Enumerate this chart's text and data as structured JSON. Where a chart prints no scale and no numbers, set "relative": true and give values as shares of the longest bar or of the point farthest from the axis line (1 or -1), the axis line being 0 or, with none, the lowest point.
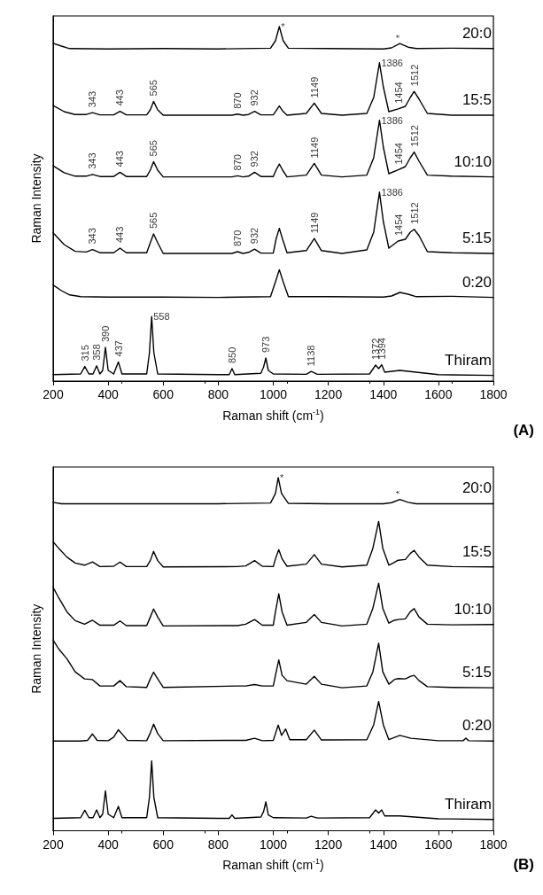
{
  "chart_data": [
    {
      "type": "line",
      "relative": true,
      "marker": "none",
      "xlabel": "Raman shift (cm$^{-1}$)",
      "ylabel": "Raman Intensity",
      "xlim": [
        200,
        1800
      ],
      "xticks": [
        200,
        400,
        600,
        800,
        1000,
        1200,
        1400,
        1600,
        1800
      ],
      "series": [
        {
          "name": "20:0",
          "color": "#000000",
          "x": [
            200,
            230,
            260,
            400,
            600,
            800,
            990,
            1008,
            1022,
            1036,
            1055,
            1200,
            1400,
            1430,
            1460,
            1490,
            1520,
            1650,
            1800
          ],
          "values": [
            0.953,
            0.945,
            0.938,
            0.937,
            0.938,
            0.937,
            0.939,
            0.96,
            1.0,
            0.96,
            0.939,
            0.938,
            0.937,
            0.94,
            0.952,
            0.942,
            0.938,
            0.939,
            0.938
          ]
        },
        {
          "name": "15:5",
          "color": "#000000",
          "x": [
            200,
            240,
            280,
            320,
            343,
            370,
            420,
            443,
            466,
            540,
            553,
            565,
            580,
            600,
            850,
            870,
            890,
            910,
            932,
            955,
            1000,
            1010,
            1022,
            1034,
            1050,
            1120,
            1149,
            1175,
            1250,
            1340,
            1365,
            1386,
            1400,
            1420,
            1454,
            1480,
            1498,
            1512,
            1530,
            1560,
            1650,
            1800
          ],
          "values": [
            0.777,
            0.76,
            0.752,
            0.752,
            0.757,
            0.751,
            0.751,
            0.761,
            0.751,
            0.751,
            0.765,
            0.789,
            0.765,
            0.75,
            0.75,
            0.753,
            0.75,
            0.752,
            0.761,
            0.751,
            0.751,
            0.762,
            0.776,
            0.762,
            0.75,
            0.755,
            0.784,
            0.755,
            0.75,
            0.755,
            0.8,
            0.898,
            0.83,
            0.76,
            0.768,
            0.775,
            0.8,
            0.817,
            0.795,
            0.755,
            0.75,
            0.75
          ]
        },
        {
          "name": "10:10",
          "color": "#000000",
          "x": [
            200,
            240,
            280,
            320,
            343,
            370,
            420,
            443,
            466,
            540,
            553,
            565,
            580,
            600,
            850,
            870,
            890,
            910,
            932,
            955,
            1000,
            1010,
            1022,
            1034,
            1050,
            1120,
            1149,
            1175,
            1250,
            1340,
            1365,
            1386,
            1400,
            1420,
            1454,
            1480,
            1498,
            1512,
            1530,
            1560,
            1650,
            1800
          ],
          "values": [
            0.607,
            0.588,
            0.578,
            0.578,
            0.583,
            0.577,
            0.577,
            0.589,
            0.577,
            0.577,
            0.595,
            0.619,
            0.595,
            0.576,
            0.576,
            0.579,
            0.576,
            0.578,
            0.589,
            0.577,
            0.577,
            0.595,
            0.612,
            0.595,
            0.576,
            0.581,
            0.614,
            0.581,
            0.576,
            0.581,
            0.63,
            0.736,
            0.66,
            0.585,
            0.596,
            0.605,
            0.63,
            0.646,
            0.62,
            0.581,
            0.578,
            0.576
          ]
        },
        {
          "name": "5:15",
          "color": "#000000",
          "x": [
            200,
            240,
            280,
            320,
            343,
            370,
            420,
            443,
            466,
            540,
            553,
            565,
            580,
            600,
            850,
            870,
            890,
            910,
            932,
            955,
            1000,
            1010,
            1022,
            1034,
            1050,
            1120,
            1149,
            1175,
            1250,
            1340,
            1365,
            1386,
            1400,
            1420,
            1454,
            1480,
            1498,
            1512,
            1530,
            1560,
            1650,
            1800
          ],
          "values": [
            0.418,
            0.385,
            0.366,
            0.364,
            0.371,
            0.362,
            0.362,
            0.375,
            0.362,
            0.362,
            0.39,
            0.415,
            0.39,
            0.36,
            0.36,
            0.365,
            0.36,
            0.363,
            0.372,
            0.361,
            0.361,
            0.4,
            0.431,
            0.4,
            0.362,
            0.368,
            0.402,
            0.368,
            0.36,
            0.37,
            0.42,
            0.533,
            0.45,
            0.375,
            0.395,
            0.4,
            0.42,
            0.428,
            0.41,
            0.365,
            0.362,
            0.36
          ]
        },
        {
          "name": "0:20",
          "color": "#000000",
          "x": [
            200,
            230,
            260,
            300,
            400,
            600,
            800,
            990,
            1008,
            1022,
            1036,
            1055,
            1200,
            1400,
            1430,
            1460,
            1490,
            1520,
            1650,
            1800
          ],
          "values": [
            0.271,
            0.255,
            0.243,
            0.238,
            0.237,
            0.237,
            0.236,
            0.238,
            0.28,
            0.314,
            0.28,
            0.238,
            0.238,
            0.237,
            0.24,
            0.25,
            0.245,
            0.238,
            0.239,
            0.236
          ]
        },
        {
          "name": "Thiram",
          "color": "#000000",
          "x": [
            200,
            300,
            315,
            330,
            345,
            358,
            370,
            380,
            390,
            400,
            420,
            437,
            450,
            540,
            550,
            558,
            566,
            580,
            800,
            840,
            850,
            860,
            955,
            965,
            973,
            982,
            1000,
            1120,
            1138,
            1160,
            1350,
            1372,
            1383,
            1394,
            1405,
            1460,
            1600,
            1800
          ],
          "values": [
            0.018,
            0.02,
            0.041,
            0.02,
            0.02,
            0.043,
            0.02,
            0.03,
            0.095,
            0.03,
            0.02,
            0.054,
            0.02,
            0.02,
            0.08,
            0.182,
            0.08,
            0.02,
            0.018,
            0.018,
            0.035,
            0.018,
            0.022,
            0.04,
            0.065,
            0.03,
            0.02,
            0.019,
            0.027,
            0.019,
            0.02,
            0.045,
            0.035,
            0.046,
            0.025,
            0.03,
            0.018,
            0.016
          ]
        }
      ],
      "annotations": [
        {
          "text": "*",
          "x": 1022,
          "y": 1.0
        },
        {
          "text": "*",
          "x": 1460,
          "y": 0.952
        },
        {
          "text": "343",
          "x": 343,
          "y": 0.757
        },
        {
          "text": "443",
          "x": 443,
          "y": 0.761
        },
        {
          "text": "565",
          "x": 565,
          "y": 0.789
        },
        {
          "text": "870",
          "x": 870,
          "y": 0.753
        },
        {
          "text": "932",
          "x": 932,
          "y": 0.761
        },
        {
          "text": "1149",
          "x": 1149,
          "y": 0.784
        },
        {
          "text": "1386",
          "x": 1386,
          "y": 0.898
        },
        {
          "text": "1454",
          "x": 1454,
          "y": 0.768
        },
        {
          "text": "1512",
          "x": 1512,
          "y": 0.817
        },
        {
          "text": "343",
          "x": 343,
          "y": 0.583
        },
        {
          "text": "443",
          "x": 443,
          "y": 0.589
        },
        {
          "text": "565",
          "x": 565,
          "y": 0.619
        },
        {
          "text": "870",
          "x": 870,
          "y": 0.579
        },
        {
          "text": "932",
          "x": 932,
          "y": 0.589
        },
        {
          "text": "1149",
          "x": 1149,
          "y": 0.614
        },
        {
          "text": "1386",
          "x": 1386,
          "y": 0.736
        },
        {
          "text": "1454",
          "x": 1454,
          "y": 0.596
        },
        {
          "text": "1512",
          "x": 1512,
          "y": 0.646
        },
        {
          "text": "343",
          "x": 343,
          "y": 0.371
        },
        {
          "text": "443",
          "x": 443,
          "y": 0.375
        },
        {
          "text": "565",
          "x": 565,
          "y": 0.415
        },
        {
          "text": "870",
          "x": 870,
          "y": 0.365
        },
        {
          "text": "932",
          "x": 932,
          "y": 0.372
        },
        {
          "text": "1149",
          "x": 1149,
          "y": 0.402
        },
        {
          "text": "1386",
          "x": 1386,
          "y": 0.533
        },
        {
          "text": "1454",
          "x": 1454,
          "y": 0.395
        },
        {
          "text": "1512",
          "x": 1512,
          "y": 0.428
        },
        {
          "text": "315",
          "x": 315,
          "y": 0.041
        },
        {
          "text": "358",
          "x": 358,
          "y": 0.043
        },
        {
          "text": "390",
          "x": 390,
          "y": 0.095
        },
        {
          "text": "437",
          "x": 437,
          "y": 0.054
        },
        {
          "text": "558",
          "x": 558,
          "y": 0.182
        },
        {
          "text": "850",
          "x": 850,
          "y": 0.035
        },
        {
          "text": "973",
          "x": 973,
          "y": 0.065
        },
        {
          "text": "1138",
          "x": 1138,
          "y": 0.027
        },
        {
          "text": "1372",
          "x": 1372,
          "y": 0.045
        },
        {
          "text": "1394",
          "x": 1394,
          "y": 0.046
        },
        "(A)"
      ]
    },
    {
      "type": "line",
      "relative": true,
      "marker": "none",
      "xlabel": "Raman shift (cm$^{-1}$)",
      "ylabel": "Raman Intensity",
      "xlim": [
        200,
        1800
      ],
      "xticks": [
        200,
        400,
        600,
        800,
        1000,
        1200,
        1400,
        1600,
        1800
      ],
      "series": [
        {
          "name": "20:0",
          "color": "#000000",
          "x": [
            200,
            230,
            260,
            400,
            600,
            800,
            990,
            1008,
            1018,
            1030,
            1055,
            1200,
            1400,
            1430,
            1460,
            1490,
            1520,
            1650,
            1800
          ],
          "values": [
            0.93,
            0.926,
            0.926,
            0.926,
            0.926,
            0.926,
            0.928,
            0.955,
            1.0,
            0.955,
            0.927,
            0.926,
            0.926,
            0.929,
            0.938,
            0.93,
            0.926,
            0.926,
            0.926
          ]
        },
        {
          "name": "15:5",
          "color": "#000000",
          "x": [
            200,
            220,
            250,
            280,
            314,
            343,
            370,
            420,
            443,
            466,
            540,
            553,
            565,
            580,
            600,
            870,
            900,
            932,
            960,
            1000,
            1008,
            1020,
            1032,
            1050,
            1120,
            1149,
            1175,
            1250,
            1340,
            1362,
            1383,
            1398,
            1420,
            1440,
            1454,
            1480,
            1498,
            1512,
            1530,
            1560,
            1650,
            1800
          ],
          "values": [
            0.818,
            0.8,
            0.775,
            0.758,
            0.752,
            0.761,
            0.748,
            0.749,
            0.761,
            0.748,
            0.748,
            0.765,
            0.791,
            0.765,
            0.747,
            0.748,
            0.75,
            0.765,
            0.749,
            0.748,
            0.77,
            0.796,
            0.77,
            0.749,
            0.755,
            0.782,
            0.755,
            0.747,
            0.752,
            0.8,
            0.876,
            0.8,
            0.752,
            0.76,
            0.766,
            0.768,
            0.785,
            0.794,
            0.775,
            0.752,
            0.748,
            0.747
          ]
        },
        {
          "name": "10:10",
          "color": "#000000",
          "x": [
            200,
            220,
            250,
            280,
            314,
            343,
            370,
            420,
            443,
            466,
            540,
            553,
            565,
            580,
            600,
            870,
            900,
            932,
            960,
            1000,
            1008,
            1020,
            1032,
            1050,
            1120,
            1149,
            1175,
            1250,
            1340,
            1362,
            1383,
            1398,
            1420,
            1440,
            1454,
            1480,
            1498,
            1512,
            1530,
            1560,
            1650,
            1800
          ],
          "values": [
            0.689,
            0.66,
            0.62,
            0.595,
            0.585,
            0.596,
            0.582,
            0.582,
            0.594,
            0.581,
            0.581,
            0.605,
            0.628,
            0.605,
            0.58,
            0.581,
            0.585,
            0.598,
            0.582,
            0.582,
            0.62,
            0.671,
            0.62,
            0.582,
            0.59,
            0.612,
            0.59,
            0.58,
            0.585,
            0.63,
            0.701,
            0.63,
            0.588,
            0.596,
            0.598,
            0.6,
            0.62,
            0.629,
            0.605,
            0.585,
            0.583,
            0.584
          ]
        },
        {
          "name": "5:15",
          "color": "#000000",
          "x": [
            200,
            220,
            250,
            280,
            314,
            343,
            370,
            420,
            443,
            466,
            540,
            553,
            565,
            580,
            600,
            870,
            900,
            932,
            960,
            1000,
            1008,
            1020,
            1032,
            1050,
            1120,
            1149,
            1175,
            1250,
            1340,
            1362,
            1383,
            1398,
            1420,
            1440,
            1454,
            1480,
            1498,
            1512,
            1530,
            1560,
            1650,
            1800
          ],
          "values": [
            0.54,
            0.515,
            0.487,
            0.45,
            0.43,
            0.428,
            0.41,
            0.41,
            0.425,
            0.408,
            0.406,
            0.43,
            0.449,
            0.43,
            0.406,
            0.41,
            0.41,
            0.414,
            0.41,
            0.41,
            0.44,
            0.484,
            0.44,
            0.425,
            0.415,
            0.437,
            0.415,
            0.405,
            0.41,
            0.45,
            0.531,
            0.45,
            0.415,
            0.428,
            0.431,
            0.43,
            0.437,
            0.44,
            0.425,
            0.408,
            0.406,
            0.405
          ]
        },
        {
          "name": "0:20",
          "color": "#000000",
          "x": [
            200,
            300,
            325,
            343,
            360,
            400,
            420,
            437,
            455,
            470,
            540,
            552,
            565,
            580,
            600,
            900,
            932,
            960,
            1000,
            1008,
            1018,
            1030,
            1045,
            1060,
            1120,
            1149,
            1175,
            1340,
            1365,
            1383,
            1400,
            1420,
            1460,
            1500,
            1600,
            1690,
            1700,
            1710,
            1800
          ],
          "values": [
            0.254,
            0.254,
            0.256,
            0.274,
            0.256,
            0.255,
            0.265,
            0.286,
            0.27,
            0.256,
            0.255,
            0.275,
            0.302,
            0.275,
            0.255,
            0.256,
            0.262,
            0.255,
            0.256,
            0.275,
            0.299,
            0.27,
            0.288,
            0.258,
            0.258,
            0.285,
            0.257,
            0.258,
            0.3,
            0.366,
            0.3,
            0.258,
            0.27,
            0.262,
            0.255,
            0.255,
            0.262,
            0.255,
            0.254
          ]
        },
        {
          "name": "Thiram",
          "color": "#000000",
          "x": [
            200,
            300,
            315,
            330,
            345,
            358,
            370,
            380,
            390,
            400,
            420,
            437,
            450,
            540,
            550,
            558,
            566,
            580,
            800,
            840,
            850,
            860,
            955,
            965,
            973,
            982,
            1000,
            1120,
            1138,
            1160,
            1350,
            1372,
            1383,
            1394,
            1405,
            1460,
            1600,
            1800
          ],
          "values": [
            0.035,
            0.037,
            0.058,
            0.037,
            0.037,
            0.059,
            0.037,
            0.047,
            0.113,
            0.047,
            0.037,
            0.069,
            0.037,
            0.037,
            0.095,
            0.198,
            0.095,
            0.037,
            0.035,
            0.035,
            0.045,
            0.035,
            0.039,
            0.055,
            0.082,
            0.045,
            0.037,
            0.036,
            0.041,
            0.036,
            0.037,
            0.059,
            0.05,
            0.059,
            0.042,
            0.042,
            0.034,
            0.032
          ]
        }
      ],
      "annotations": [
        {
          "text": "*",
          "x": 1018,
          "y": 1.0
        },
        {
          "text": "*",
          "x": 1460,
          "y": 0.938
        },
        "(B)"
      ]
    }
  ]
}
